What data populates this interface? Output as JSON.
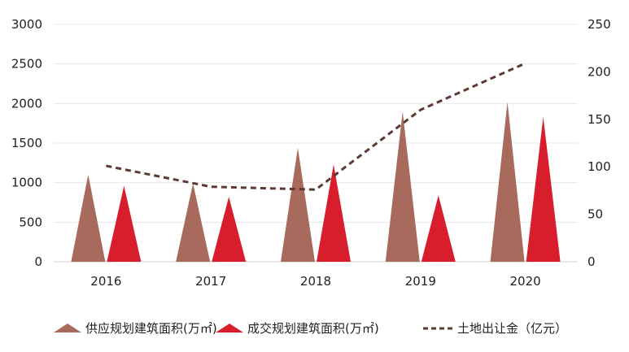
{
  "chart_data": {
    "type": "bar",
    "categories": [
      "2016",
      "2017",
      "2018",
      "2019",
      "2020"
    ],
    "series": [
      {
        "name": "供应规划建筑面积(万㎡)",
        "kind": "triangle-bar",
        "axis": "left",
        "color": "#a76a5c",
        "values": [
          1100,
          990,
          1440,
          1900,
          2020
        ]
      },
      {
        "name": "成交规划建筑面积(万㎡)",
        "kind": "triangle-bar",
        "axis": "left",
        "color": "#d81e2c",
        "values": [
          960,
          820,
          1230,
          840,
          1830
        ]
      },
      {
        "name": "土地出让金（亿元）",
        "kind": "dashed-line",
        "axis": "right",
        "color": "#5a3a32",
        "values": [
          101,
          79,
          76,
          160,
          209
        ]
      }
    ],
    "y_left": {
      "min": 0,
      "max": 3000,
      "ticks": [
        0,
        500,
        1000,
        1500,
        2000,
        2500,
        3000
      ]
    },
    "y_right": {
      "min": 0,
      "max": 250,
      "ticks": [
        0,
        50,
        100,
        150,
        200,
        250
      ]
    },
    "grid": true,
    "legend_position": "bottom"
  }
}
